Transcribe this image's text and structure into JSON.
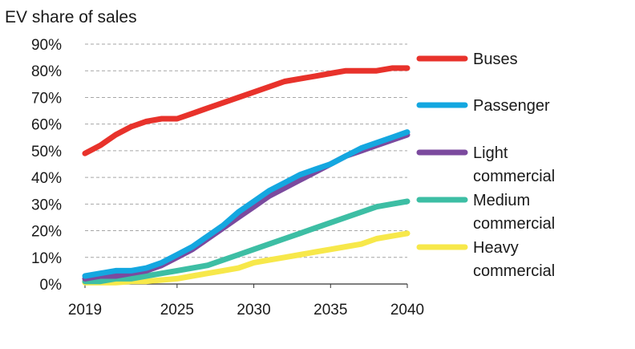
{
  "chart_data": {
    "type": "line",
    "title": "EV share of sales",
    "xlabel": "",
    "ylabel": "",
    "xlim": [
      2019,
      2040
    ],
    "ylim": [
      0,
      90
    ],
    "y_tick_labels": [
      "0%",
      "10%",
      "20%",
      "30%",
      "40%",
      "50%",
      "60%",
      "70%",
      "80%",
      "90%"
    ],
    "y_ticks": [
      0,
      10,
      20,
      30,
      40,
      50,
      60,
      70,
      80,
      90
    ],
    "x_tick_labels": [
      "2019",
      "2025",
      "2030",
      "2035",
      "2040"
    ],
    "x_ticks": [
      2019,
      2025,
      2030,
      2035,
      2040
    ],
    "grid": "horizontal dashed",
    "legend": "right",
    "x": [
      2019,
      2020,
      2021,
      2022,
      2023,
      2024,
      2025,
      2026,
      2027,
      2028,
      2029,
      2030,
      2031,
      2032,
      2033,
      2034,
      2035,
      2036,
      2037,
      2038,
      2039,
      2040
    ],
    "series": [
      {
        "name": "Buses",
        "color": "#e8322b",
        "values": [
          49,
          52,
          56,
          59,
          61,
          62,
          62,
          64,
          66,
          68,
          70,
          72,
          74,
          76,
          77,
          78,
          79,
          80,
          80,
          80,
          81,
          81
        ]
      },
      {
        "name": "Passenger",
        "color": "#14a7e0",
        "values": [
          3,
          4,
          5,
          5,
          6,
          8,
          11,
          14,
          18,
          22,
          27,
          31,
          35,
          38,
          41,
          43,
          45,
          48,
          51,
          53,
          55,
          57
        ]
      },
      {
        "name": "Light commercial",
        "color": "#7b4a9e",
        "values": [
          2,
          3,
          3,
          4,
          5,
          7,
          10,
          13,
          17,
          21,
          25,
          29,
          33,
          36,
          39,
          42,
          45,
          48,
          50,
          52,
          54,
          56
        ]
      },
      {
        "name": "Medium commercial",
        "color": "#3dbea4",
        "values": [
          1,
          1,
          2,
          2,
          3,
          4,
          5,
          6,
          7,
          9,
          11,
          13,
          15,
          17,
          19,
          21,
          23,
          25,
          27,
          29,
          30,
          31
        ]
      },
      {
        "name": "Heavy commercial",
        "color": "#f7e84a",
        "values": [
          0.5,
          0.5,
          0.5,
          1,
          1,
          1.5,
          2,
          3,
          4,
          5,
          6,
          8,
          9,
          10,
          11,
          12,
          13,
          14,
          15,
          17,
          18,
          19
        ]
      }
    ],
    "legend_labels": [
      {
        "lines": [
          "Buses"
        ]
      },
      {
        "lines": [
          "Passenger"
        ]
      },
      {
        "lines": [
          "Light",
          "commercial"
        ]
      },
      {
        "lines": [
          "Medium",
          "commercial"
        ]
      },
      {
        "lines": [
          "Heavy",
          "commercial"
        ]
      }
    ]
  }
}
